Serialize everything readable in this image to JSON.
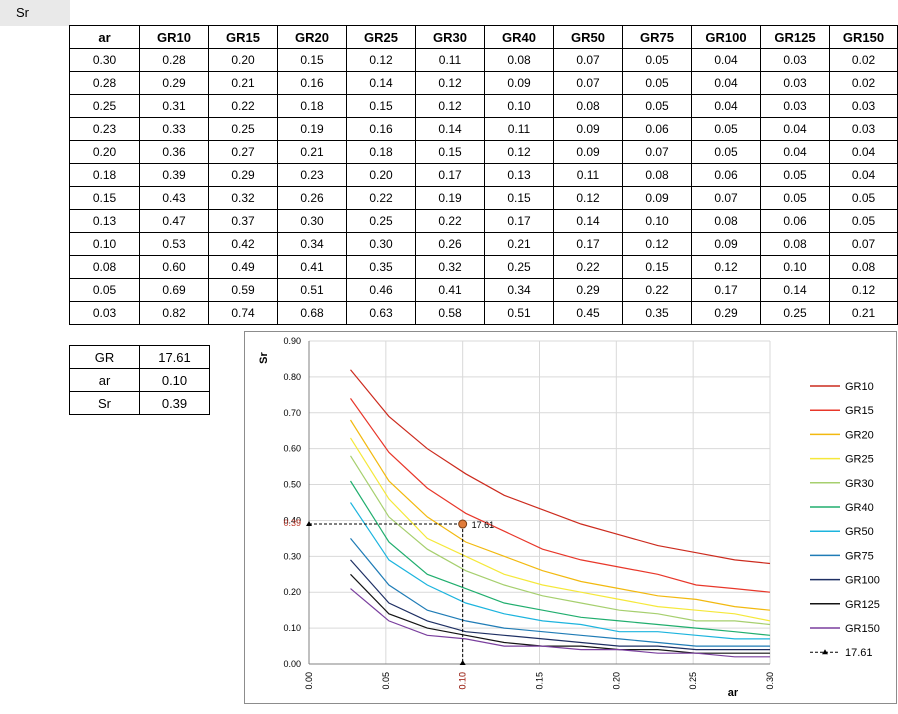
{
  "sheet": {
    "cell_label": "Sr"
  },
  "table": {
    "headers": [
      "ar",
      "GR10",
      "GR15",
      "GR20",
      "GR25",
      "GR30",
      "GR40",
      "GR50",
      "GR75",
      "GR100",
      "GR125",
      "GR150"
    ],
    "rows": [
      [
        "0.30",
        "0.28",
        "0.20",
        "0.15",
        "0.12",
        "0.11",
        "0.08",
        "0.07",
        "0.05",
        "0.04",
        "0.03",
        "0.02"
      ],
      [
        "0.28",
        "0.29",
        "0.21",
        "0.16",
        "0.14",
        "0.12",
        "0.09",
        "0.07",
        "0.05",
        "0.04",
        "0.03",
        "0.02"
      ],
      [
        "0.25",
        "0.31",
        "0.22",
        "0.18",
        "0.15",
        "0.12",
        "0.10",
        "0.08",
        "0.05",
        "0.04",
        "0.03",
        "0.03"
      ],
      [
        "0.23",
        "0.33",
        "0.25",
        "0.19",
        "0.16",
        "0.14",
        "0.11",
        "0.09",
        "0.06",
        "0.05",
        "0.04",
        "0.03"
      ],
      [
        "0.20",
        "0.36",
        "0.27",
        "0.21",
        "0.18",
        "0.15",
        "0.12",
        "0.09",
        "0.07",
        "0.05",
        "0.04",
        "0.04"
      ],
      [
        "0.18",
        "0.39",
        "0.29",
        "0.23",
        "0.20",
        "0.17",
        "0.13",
        "0.11",
        "0.08",
        "0.06",
        "0.05",
        "0.04"
      ],
      [
        "0.15",
        "0.43",
        "0.32",
        "0.26",
        "0.22",
        "0.19",
        "0.15",
        "0.12",
        "0.09",
        "0.07",
        "0.05",
        "0.05"
      ],
      [
        "0.13",
        "0.47",
        "0.37",
        "0.30",
        "0.25",
        "0.22",
        "0.17",
        "0.14",
        "0.10",
        "0.08",
        "0.06",
        "0.05"
      ],
      [
        "0.10",
        "0.53",
        "0.42",
        "0.34",
        "0.30",
        "0.26",
        "0.21",
        "0.17",
        "0.12",
        "0.09",
        "0.08",
        "0.07"
      ],
      [
        "0.08",
        "0.60",
        "0.49",
        "0.41",
        "0.35",
        "0.32",
        "0.25",
        "0.22",
        "0.15",
        "0.12",
        "0.10",
        "0.08"
      ],
      [
        "0.05",
        "0.69",
        "0.59",
        "0.51",
        "0.46",
        "0.41",
        "0.34",
        "0.29",
        "0.22",
        "0.17",
        "0.14",
        "0.12"
      ],
      [
        "0.03",
        "0.82",
        "0.74",
        "0.68",
        "0.63",
        "0.58",
        "0.51",
        "0.45",
        "0.35",
        "0.29",
        "0.25",
        "0.21"
      ]
    ]
  },
  "inputs": [
    {
      "label": "GR",
      "value": "17.61"
    },
    {
      "label": "ar",
      "value": "0.10"
    },
    {
      "label": "Sr",
      "value": "0.39"
    }
  ],
  "chart_data": {
    "type": "line",
    "title": "",
    "xlabel": "ar",
    "ylabel": "Sr",
    "xlim": [
      0,
      0.3
    ],
    "ylim": [
      0,
      0.9
    ],
    "grid": true,
    "legend_position": "right",
    "x_ticks": [
      "0.00",
      "0.05",
      "0.10",
      "0.15",
      "0.20",
      "0.25",
      "0.30"
    ],
    "y_ticks": [
      "0.00",
      "0.10",
      "0.20",
      "0.30",
      "0.40",
      "0.50",
      "0.60",
      "0.70",
      "0.80",
      "0.90"
    ],
    "x": [
      0.027,
      0.052,
      0.077,
      0.102,
      0.127,
      0.152,
      0.177,
      0.202,
      0.227,
      0.252,
      0.277,
      0.302
    ],
    "series": [
      {
        "name": "GR10",
        "color": "#cc2b1e",
        "values": [
          0.82,
          0.69,
          0.6,
          0.53,
          0.47,
          0.43,
          0.39,
          0.36,
          0.33,
          0.31,
          0.29,
          0.28
        ]
      },
      {
        "name": "GR15",
        "color": "#e8372a",
        "values": [
          0.74,
          0.59,
          0.49,
          0.42,
          0.37,
          0.32,
          0.29,
          0.27,
          0.25,
          0.22,
          0.21,
          0.2
        ]
      },
      {
        "name": "GR20",
        "color": "#f2b90f",
        "values": [
          0.68,
          0.51,
          0.41,
          0.34,
          0.3,
          0.26,
          0.23,
          0.21,
          0.19,
          0.18,
          0.16,
          0.15
        ]
      },
      {
        "name": "GR25",
        "color": "#f5e83a",
        "values": [
          0.63,
          0.46,
          0.35,
          0.3,
          0.25,
          0.22,
          0.2,
          0.18,
          0.16,
          0.15,
          0.14,
          0.12
        ]
      },
      {
        "name": "GR30",
        "color": "#a6cf6e",
        "values": [
          0.58,
          0.41,
          0.32,
          0.26,
          0.22,
          0.19,
          0.17,
          0.15,
          0.14,
          0.12,
          0.12,
          0.11
        ]
      },
      {
        "name": "GR40",
        "color": "#20ae6e",
        "values": [
          0.51,
          0.34,
          0.25,
          0.21,
          0.17,
          0.15,
          0.13,
          0.12,
          0.11,
          0.1,
          0.09,
          0.08
        ]
      },
      {
        "name": "GR50",
        "color": "#1cb4de",
        "values": [
          0.45,
          0.29,
          0.22,
          0.17,
          0.14,
          0.12,
          0.11,
          0.09,
          0.09,
          0.08,
          0.07,
          0.07
        ]
      },
      {
        "name": "GR75",
        "color": "#1f7cb6",
        "values": [
          0.35,
          0.22,
          0.15,
          0.12,
          0.1,
          0.09,
          0.08,
          0.07,
          0.06,
          0.05,
          0.05,
          0.05
        ]
      },
      {
        "name": "GR100",
        "color": "#1e2f63",
        "values": [
          0.29,
          0.17,
          0.12,
          0.09,
          0.08,
          0.07,
          0.06,
          0.05,
          0.05,
          0.04,
          0.04,
          0.04
        ]
      },
      {
        "name": "GR125",
        "color": "#141414",
        "values": [
          0.25,
          0.14,
          0.1,
          0.08,
          0.06,
          0.05,
          0.05,
          0.04,
          0.04,
          0.03,
          0.03,
          0.03
        ]
      },
      {
        "name": "GR150",
        "color": "#7a3f9e",
        "values": [
          0.21,
          0.12,
          0.08,
          0.07,
          0.05,
          0.05,
          0.04,
          0.04,
          0.03,
          0.03,
          0.02,
          0.02
        ]
      }
    ],
    "marker": {
      "name": "17.61",
      "x": 0.1,
      "y": 0.39,
      "point_label": "17.61",
      "x_value_label": "0.10",
      "y_value_label": "0.39",
      "line_color": "#000000",
      "point_color": "#e07b39",
      "value_label_color": "#c0392b"
    }
  }
}
